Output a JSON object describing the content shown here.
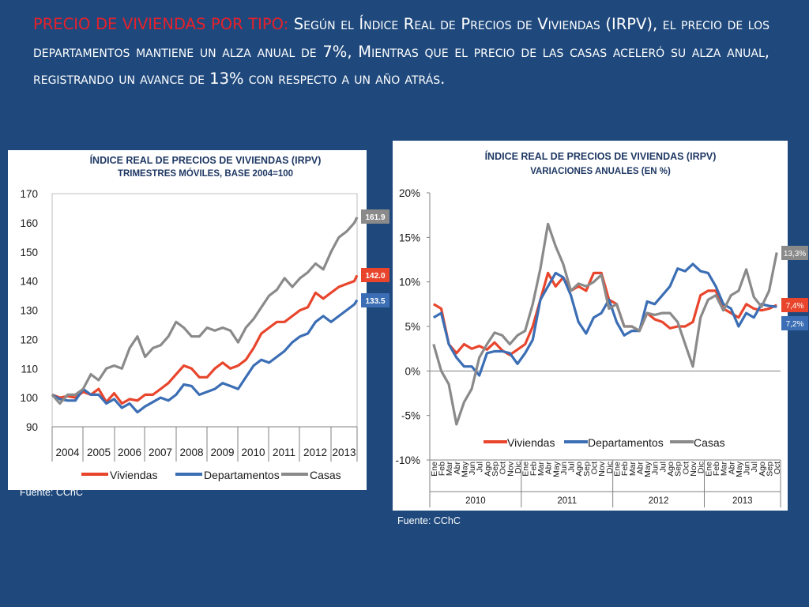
{
  "headline": {
    "label": "PRECIO DE VIVIENDAS POR TIPO:",
    "text": "Según el Índice Real de Precios de Viviendas (IRPV), el precio de los departamentos mantiene un alza anual de 7%, Mientras que el precio de las casas aceleró su alza anual, registrando un avance de 13% con respecto a un año atrás."
  },
  "colors": {
    "Viviendas": "#e8452c",
    "Departamentos": "#3b6eb4",
    "Casas": "#8a8a8a",
    "background": "#1f497d"
  },
  "chart_data": [
    {
      "type": "line",
      "title": "ÍNDICE REAL DE PRECIOS DE VIVIENDAS (IRPV)",
      "subtitle": "TRIMESTRES MÓVILES, BASE 2004=100",
      "source": "Fuente: CChC",
      "xlabel": "",
      "ylabel": "",
      "ylim": [
        90,
        170
      ],
      "yticks": [
        "170",
        "160",
        "150",
        "140",
        "130",
        "120",
        "110",
        "100",
        "90"
      ],
      "categories": [
        "2004",
        "2005",
        "2006",
        "2007",
        "2008",
        "2009",
        "2010",
        "2011",
        "2012",
        "2013"
      ],
      "x_range": [
        2004,
        2013.84
      ],
      "grid": false,
      "legend": "bottom",
      "end_labels": [
        {
          "series": "Casas",
          "text": "161.9"
        },
        {
          "series": "Viviendas",
          "text": "142.0"
        },
        {
          "series": "Departamentos",
          "text": "133.5"
        }
      ],
      "series": [
        {
          "name": "Viviendas",
          "x": [
            2004,
            2004.25,
            2004.5,
            2004.75,
            2005,
            2005.25,
            2005.5,
            2005.75,
            2006,
            2006.25,
            2006.5,
            2006.75,
            2007,
            2007.25,
            2007.5,
            2007.75,
            2008,
            2008.25,
            2008.5,
            2008.75,
            2009,
            2009.25,
            2009.5,
            2009.75,
            2010,
            2010.25,
            2010.5,
            2010.75,
            2011,
            2011.25,
            2011.5,
            2011.75,
            2012,
            2012.25,
            2012.5,
            2012.75,
            2013,
            2013.25,
            2013.5,
            2013.75,
            2013.84
          ],
          "values": [
            101,
            100,
            100.5,
            100,
            102,
            101,
            103,
            98.5,
            101.5,
            98,
            99.5,
            99,
            101,
            101,
            103,
            105,
            108,
            111,
            110,
            107,
            107,
            110,
            112,
            110,
            111,
            113,
            117,
            122,
            124,
            126,
            126,
            128,
            130,
            131,
            136,
            134,
            136,
            138,
            139,
            140,
            142
          ]
        },
        {
          "name": "Departamentos",
          "x": [
            2004,
            2004.25,
            2004.5,
            2004.75,
            2005,
            2005.25,
            2005.5,
            2005.75,
            2006,
            2006.25,
            2006.5,
            2006.75,
            2007,
            2007.25,
            2007.5,
            2007.75,
            2008,
            2008.25,
            2008.5,
            2008.75,
            2009,
            2009.25,
            2009.5,
            2009.75,
            2010,
            2010.25,
            2010.5,
            2010.75,
            2011,
            2011.25,
            2011.5,
            2011.75,
            2012,
            2012.25,
            2012.5,
            2012.75,
            2013,
            2013.25,
            2013.5,
            2013.75,
            2013.84
          ],
          "values": [
            101,
            99.5,
            99,
            99,
            103,
            101,
            101,
            98,
            99.5,
            96.5,
            98,
            95,
            97,
            98.5,
            100,
            99,
            101,
            104.5,
            104,
            101,
            102,
            103,
            105,
            104,
            103,
            107,
            111,
            113,
            112,
            114,
            116,
            119,
            121,
            122,
            126,
            128,
            126,
            128,
            130,
            132,
            133.5
          ]
        },
        {
          "name": "Casas",
          "x": [
            2004,
            2004.25,
            2004.5,
            2004.75,
            2005,
            2005.25,
            2005.5,
            2005.75,
            2006,
            2006.25,
            2006.5,
            2006.75,
            2007,
            2007.25,
            2007.5,
            2007.75,
            2008,
            2008.25,
            2008.5,
            2008.75,
            2009,
            2009.25,
            2009.5,
            2009.75,
            2010,
            2010.25,
            2010.5,
            2010.75,
            2011,
            2011.25,
            2011.5,
            2011.75,
            2012,
            2012.25,
            2012.5,
            2012.75,
            2013,
            2013.25,
            2013.5,
            2013.75,
            2013.84
          ],
          "values": [
            101,
            98,
            101,
            101,
            103,
            108,
            106,
            110,
            111,
            110,
            117,
            121,
            114,
            117,
            118,
            121,
            126,
            124,
            121,
            121,
            124,
            123,
            124,
            123,
            119,
            124,
            127,
            131,
            135,
            137,
            141,
            138,
            141,
            143,
            146,
            144,
            150,
            155,
            157,
            160,
            161.9
          ]
        }
      ]
    },
    {
      "type": "line",
      "title": "ÍNDICE REAL DE PRECIOS DE VIVIENDAS (IRPV)",
      "subtitle": "VARIACIONES ANUALES (EN %)",
      "source": "Fuente: CChC",
      "xlabel": "",
      "ylabel": "",
      "ylim": [
        -10,
        20
      ],
      "yticks": [
        "20%",
        "15%",
        "10%",
        "5%",
        "0%",
        "-5%",
        "-10%"
      ],
      "categories": [
        "Ene",
        "Feb",
        "Mar",
        "Abr",
        "May",
        "Jun",
        "Jul",
        "Ago",
        "Sep",
        "Oct",
        "Nov",
        "Dic",
        "Ene",
        "Feb",
        "Mar",
        "Abr",
        "May",
        "Jun",
        "Jul",
        "Ago",
        "Sep",
        "Oct",
        "Nov",
        "Dic",
        "Ene",
        "Feb",
        "Mar",
        "Abr",
        "May",
        "Jun",
        "Jul",
        "Ago",
        "Sep",
        "Oct",
        "Nov",
        "Dic",
        "Ene",
        "Feb",
        "Mar",
        "Abr",
        "May",
        "Jun",
        "Jul",
        "Ago",
        "Sep",
        "Oct"
      ],
      "years": [
        "2010",
        "2011",
        "2012",
        "2013"
      ],
      "grid": false,
      "legend": "bottom-center",
      "end_labels": [
        {
          "series": "Casas",
          "text": "13,3%"
        },
        {
          "series": "Viviendas",
          "text": "7,4%"
        },
        {
          "series": "Departamentos",
          "text": "7,2%"
        }
      ],
      "series": [
        {
          "name": "Viviendas",
          "values": [
            7.5,
            7,
            3,
            2,
            3,
            2.5,
            2.8,
            2.4,
            3.2,
            2.3,
            1.8,
            2.4,
            3,
            5,
            8,
            11,
            9.5,
            10.5,
            9,
            9.5,
            9,
            11,
            11,
            8,
            7.5,
            5,
            5,
            4.5,
            6.5,
            5.8,
            5.5,
            4.8,
            5,
            5,
            5.5,
            8.5,
            9,
            9,
            7,
            6.5,
            6,
            7.5,
            7,
            6.8,
            7,
            7.4
          ]
        },
        {
          "name": "Departamentos",
          "values": [
            6,
            6.5,
            3,
            1.5,
            0.5,
            0.5,
            -0.5,
            2,
            2.2,
            2.2,
            2,
            0.8,
            2,
            3.5,
            8,
            9.5,
            11,
            10.5,
            8.5,
            5.5,
            4.2,
            6,
            6.5,
            8,
            5.5,
            4,
            4.5,
            4.5,
            7.8,
            7.5,
            8.5,
            9.5,
            11.5,
            11.2,
            12,
            11.2,
            11,
            9.5,
            7.5,
            7,
            5,
            6.5,
            6,
            7.5,
            7.3,
            7.2
          ]
        },
        {
          "name": "Casas",
          "values": [
            3,
            0,
            -1.5,
            -6,
            -3.5,
            -2,
            1.5,
            3,
            4.3,
            4,
            3,
            4,
            4.5,
            7.5,
            11.5,
            16.5,
            14,
            12,
            9,
            9.8,
            9.5,
            10,
            10.8,
            7,
            7.5,
            5,
            5,
            4.5,
            6.5,
            6.3,
            6.5,
            6.5,
            5.5,
            3,
            0.5,
            6,
            8,
            8.5,
            6.8,
            8.5,
            9,
            11.4,
            8.3,
            7.2,
            9,
            13.3
          ]
        }
      ]
    }
  ]
}
